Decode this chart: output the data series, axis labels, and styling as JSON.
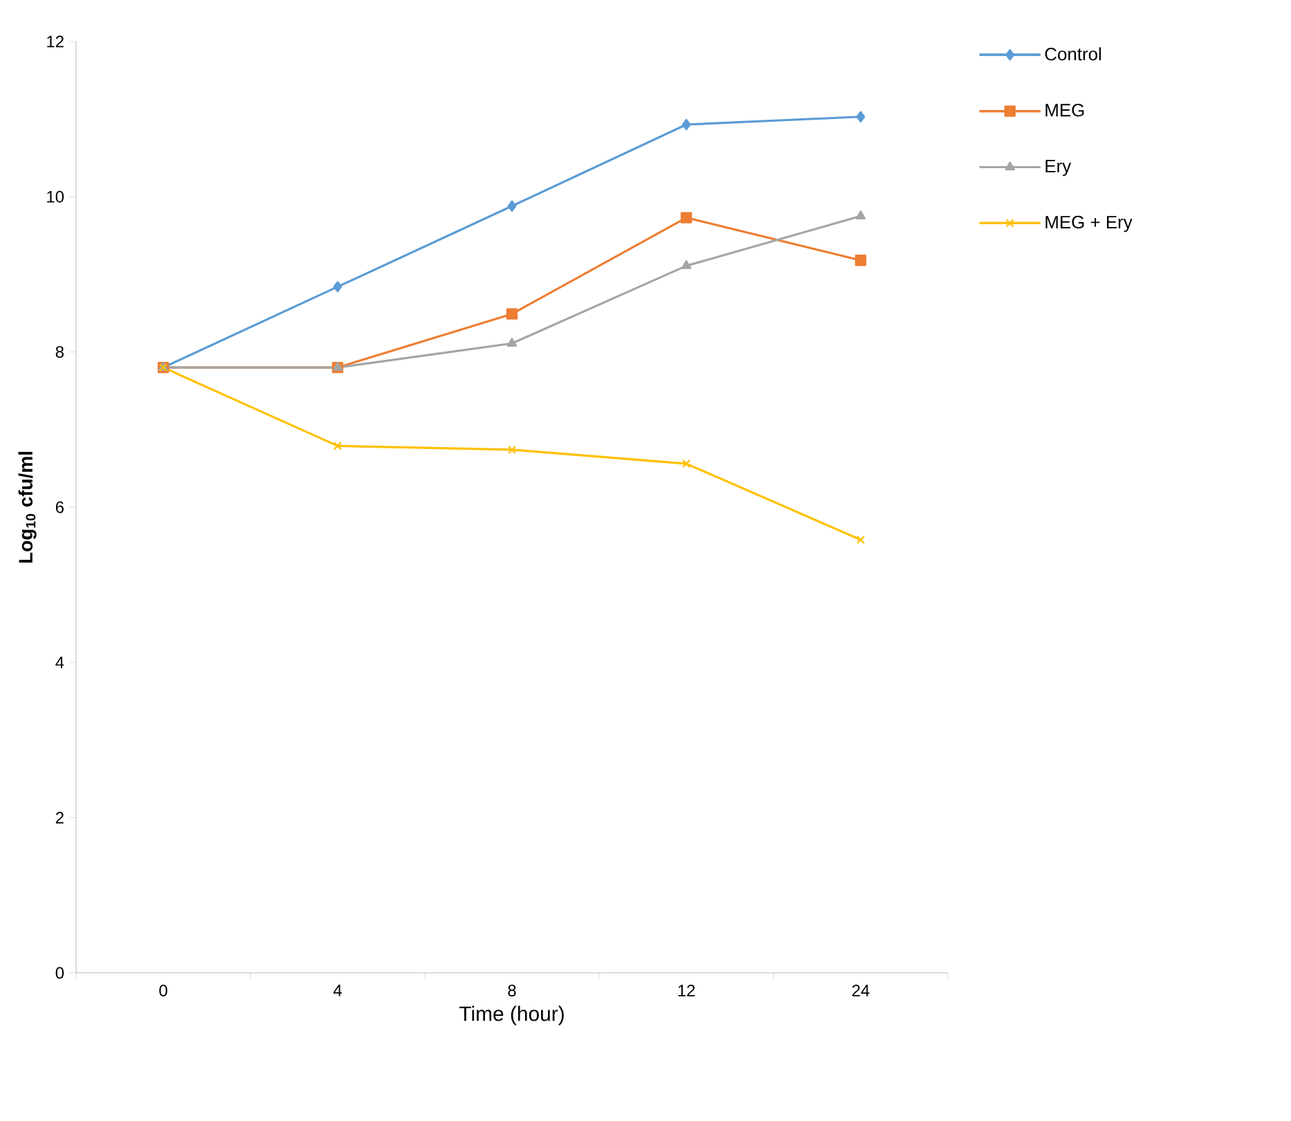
{
  "chart_data": {
    "type": "line",
    "xlabel": "Time (hour)",
    "ylabel": "Log$_{10}$ cfu/ml",
    "categories": [
      "0",
      "4",
      "8",
      "12",
      "24"
    ],
    "series": [
      {
        "name": "Control",
        "color": "#5b9bd5",
        "marker": "diamond",
        "values": [
          7.8,
          8.84,
          9.88,
          10.93,
          11.03
        ]
      },
      {
        "name": "MEG",
        "color": "#ed7d31",
        "marker": "square",
        "values": [
          7.8,
          7.8,
          8.49,
          9.73,
          9.18
        ]
      },
      {
        "name": "Ery",
        "color": "#a5a5a5",
        "marker": "triangle",
        "values": [
          7.8,
          7.8,
          8.11,
          9.11,
          9.75
        ]
      },
      {
        "name": "MEG + Ery",
        "color": "#ffc000",
        "marker": "cross",
        "values": [
          7.8,
          6.79,
          6.74,
          6.56,
          5.58
        ]
      }
    ],
    "ylim": [
      0,
      12
    ],
    "yticks": [
      0,
      2,
      4,
      6,
      8,
      10,
      12
    ],
    "grid": false,
    "legend": "top right",
    "line_style": "solid"
  }
}
